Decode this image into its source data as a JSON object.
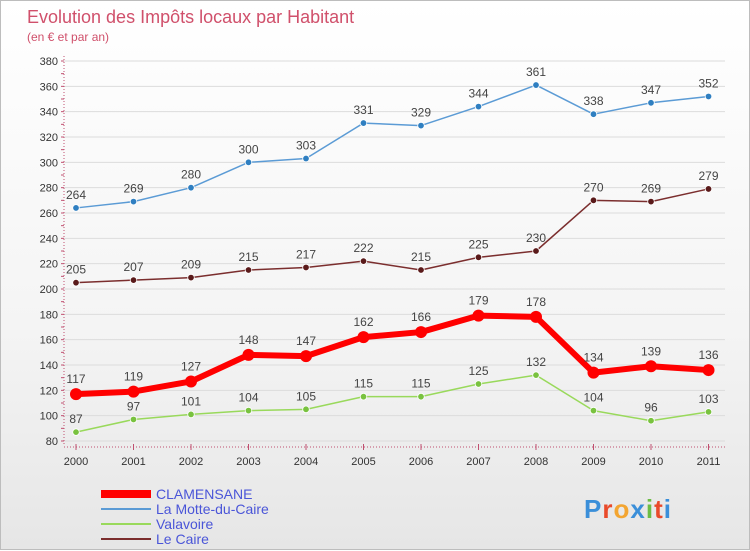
{
  "chart_data": {
    "type": "line",
    "title": "Evolution des Impôts locaux par Habitant",
    "subtitle": "(en € et par an)",
    "x": [
      "2000",
      "2001",
      "2002",
      "2003",
      "2004",
      "2005",
      "2006",
      "2007",
      "2008",
      "2009",
      "2010",
      "2011"
    ],
    "ylim": [
      80,
      380
    ],
    "yticks": [
      80,
      100,
      120,
      140,
      160,
      180,
      200,
      220,
      240,
      260,
      280,
      300,
      320,
      340,
      360,
      380
    ],
    "grid": true,
    "legend_position": "bottom-left",
    "series": [
      {
        "name": "La Motte-du-Caire",
        "color": "#5b9bd5",
        "marker": "#2f7fc1",
        "values": [
          264,
          269,
          280,
          300,
          303,
          331,
          329,
          344,
          361,
          338,
          347,
          352
        ]
      },
      {
        "name": "Le Caire",
        "color": "#7b2e2e",
        "marker": "#5a1a1a",
        "values": [
          205,
          207,
          209,
          215,
          217,
          222,
          215,
          225,
          230,
          270,
          269,
          279
        ]
      },
      {
        "name": "Valavoire",
        "color": "#99d95b",
        "marker": "#79c23f",
        "values": [
          87,
          97,
          101,
          104,
          105,
          115,
          115,
          125,
          132,
          104,
          96,
          103
        ]
      },
      {
        "name": "CLAMENSANE",
        "color": "#ff0000",
        "marker": "#ff0000",
        "values": [
          117,
          119,
          127,
          148,
          147,
          162,
          166,
          179,
          178,
          134,
          139,
          136
        ]
      }
    ],
    "legend_order": [
      "CLAMENSANE",
      "La Motte-du-Caire",
      "Valavoire",
      "Le Caire"
    ]
  },
  "branding": {
    "logo_text": "Proxiti",
    "logo_colors": [
      "#3b8fd9",
      "#e94a2a",
      "#f3a531",
      "#3b8fd9",
      "#6cbd45",
      "#e94a2a",
      "#3b8fd9"
    ]
  }
}
